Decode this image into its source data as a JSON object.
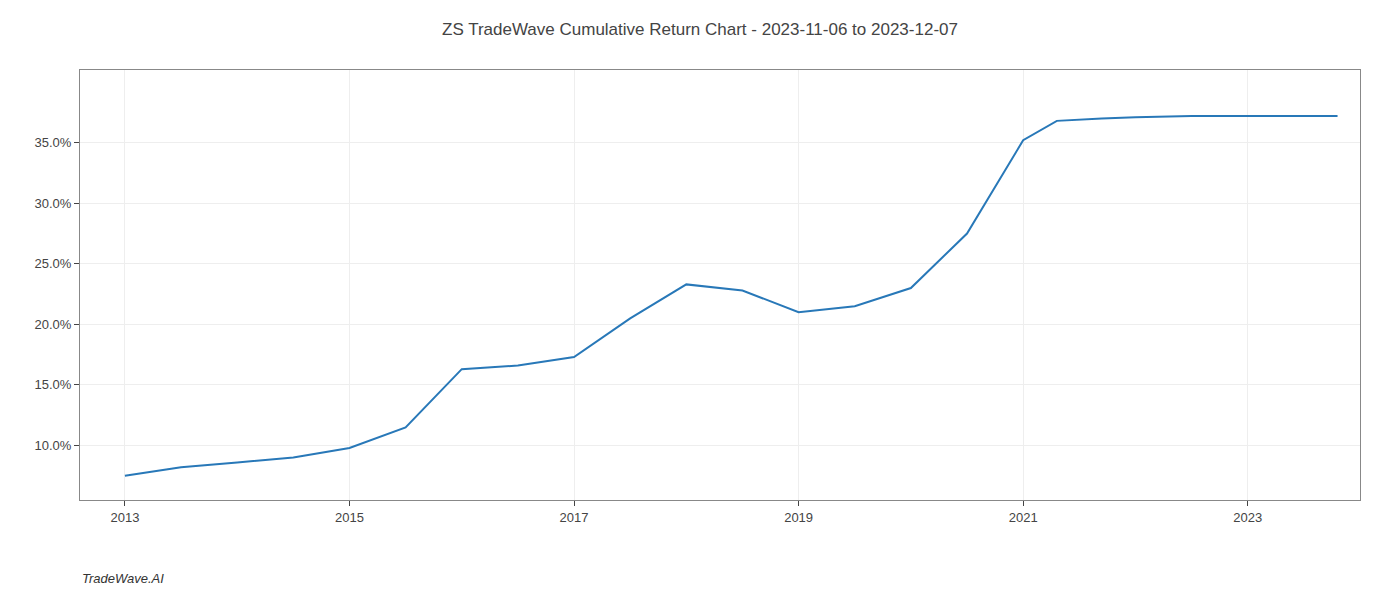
{
  "chart_data": {
    "type": "line",
    "title": "ZS TradeWave Cumulative Return Chart - 2023-11-06 to 2023-12-07",
    "annotations": [
      "TradeWave.AI"
    ],
    "x": [
      2013.0,
      2013.5,
      2014.0,
      2014.5,
      2015.0,
      2015.5,
      2016.0,
      2016.5,
      2017.0,
      2017.5,
      2018.0,
      2018.5,
      2019.0,
      2019.5,
      2020.0,
      2020.5,
      2021.0,
      2021.3,
      2021.7,
      2022.0,
      2022.5,
      2023.0,
      2023.8
    ],
    "values": [
      7.5,
      8.2,
      8.6,
      9.0,
      9.8,
      11.5,
      16.3,
      16.6,
      17.3,
      20.5,
      23.3,
      22.8,
      21.0,
      21.5,
      23.0,
      27.5,
      35.2,
      36.8,
      37.0,
      37.1,
      37.2,
      37.2,
      37.2
    ],
    "color": "#2878b8",
    "xlim": [
      2012.6,
      2024.0
    ],
    "ylim": [
      5.5,
      41.0
    ],
    "xticks": [
      2013,
      2015,
      2017,
      2019,
      2021,
      2023
    ],
    "yticks": [
      {
        "value": 10.0,
        "label": "10.0%"
      },
      {
        "value": 15.0,
        "label": "15.0%"
      },
      {
        "value": 20.0,
        "label": "20.0%"
      },
      {
        "value": 25.0,
        "label": "25.0%"
      },
      {
        "value": 30.0,
        "label": "30.0%"
      },
      {
        "value": 35.0,
        "label": "35.0%"
      }
    ],
    "grid": true
  }
}
